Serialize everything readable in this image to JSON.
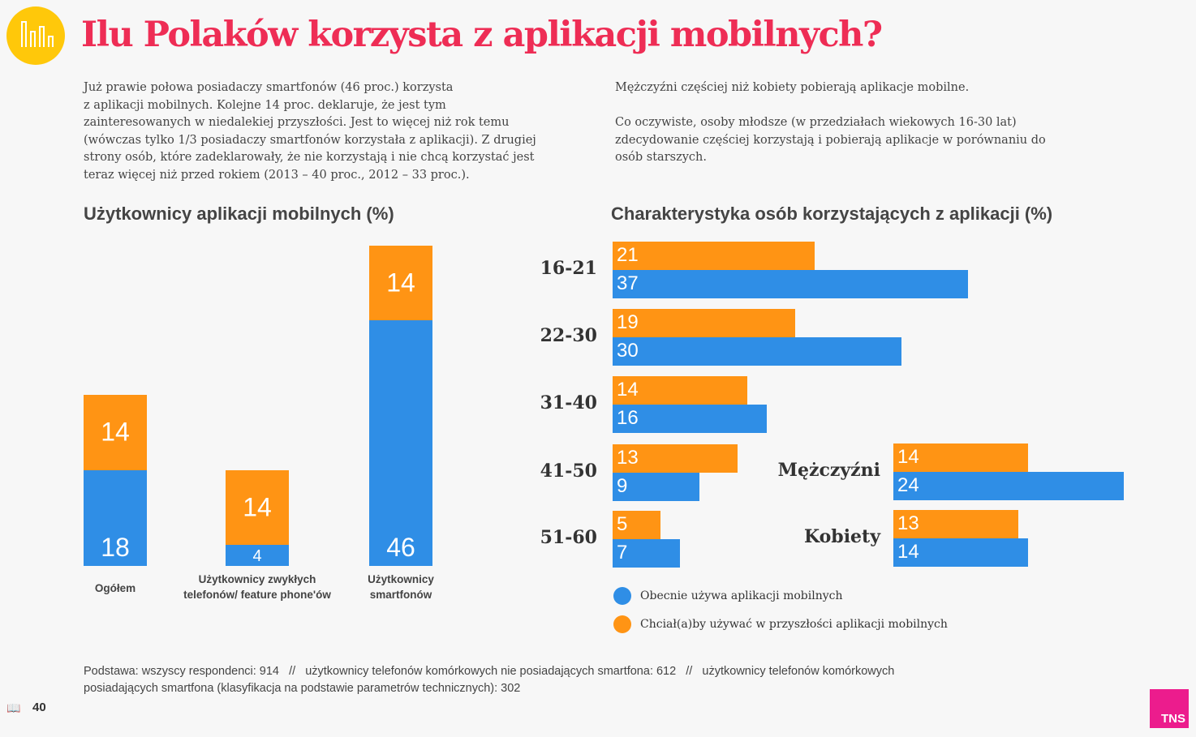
{
  "header": {
    "title": "Ilu Polaków korzysta z aplikacji mobilnych?"
  },
  "intro": {
    "left": [
      "Już prawie połowa posiadaczy smartfonów (46 proc.) korzysta",
      "z aplikacji mobilnych. Kolejne 14 proc. deklaruje, że jest tym",
      "zainteresowanych w niedalekiej przyszłości. Jest to więcej niż rok temu",
      "(wówczas tylko 1/3 posiadaczy smartfonów korzystała z aplikacji). Z drugiej",
      "strony osób, które zadeklarowały, że nie korzystają i nie chcą korzystać jest",
      "teraz więcej niż przed rokiem (2013 – 40 proc., 2012 – 33 proc.)."
    ],
    "right": [
      "Mężczyźni częściej niż kobiety pobierają aplikacje mobilne.",
      "",
      "Co oczywiste, osoby młodsze (w przedziałach wiekowych 16-30 lat)",
      "zdecydowanie częściej korzystają i pobierają aplikacje w porównaniu do",
      "osób starszych."
    ]
  },
  "colors": {
    "current": "#2f8ee6",
    "future": "#ff9414",
    "title": "#ee2d55",
    "logo": "#ffc80a",
    "tns": "#ec1c8d"
  },
  "chart_data": [
    {
      "type": "bar",
      "stacked": true,
      "title": "Użytkownicy aplikacji mobilnych (%)",
      "categories": [
        "Ogółem",
        "Użytkownicy zwykłych telefonów/ feature phone'ów",
        "Użytkownicy smartfonów"
      ],
      "category_lines": [
        [
          "Ogółem"
        ],
        [
          "Użytkownicy zwykłych",
          "telefonów/ feature phone'ów"
        ],
        [
          "Użytkownicy",
          "smartfonów"
        ]
      ],
      "series": [
        {
          "name": "Obecnie używa aplikacji mobilnych",
          "values": [
            18,
            4,
            46
          ]
        },
        {
          "name": "Chciał(a)by używać w przyszłości aplikacji mobilnych",
          "values": [
            14,
            14,
            14
          ]
        }
      ],
      "ylim": [
        0,
        60
      ]
    },
    {
      "type": "bar",
      "orientation": "horizontal",
      "title": "Charakterystyka osób korzystających z aplikacji (%)",
      "groups": [
        {
          "label": "16-21",
          "future": 21,
          "current": 37
        },
        {
          "label": "22-30",
          "future": 19,
          "current": 30
        },
        {
          "label": "31-40",
          "future": 14,
          "current": 16
        },
        {
          "label": "41-50",
          "future": 13,
          "current": 9
        },
        {
          "label": "51-60",
          "future": 5,
          "current": 7
        }
      ],
      "gender": [
        {
          "label": "Mężczyźni",
          "future": 14,
          "current": 24
        },
        {
          "label": "Kobiety",
          "future": 13,
          "current": 14
        }
      ],
      "xlim": [
        0,
        40
      ]
    }
  ],
  "legend": [
    {
      "label": "Obecnie używa aplikacji mobilnych",
      "color": "#2f8ee6"
    },
    {
      "label": "Chciał(a)by używać w przyszłości aplikacji mobilnych",
      "color": "#ff9414"
    }
  ],
  "footer": {
    "base_lines": [
      "Podstawa: wszyscy respondenci: 914   //   użytkownicy telefonów komórkowych nie posiadających smartfona: 612   //   użytkownicy telefonów komórkowych",
      "posiadających smartfona (klasyfikacja na podstawie parametrów technicznych): 302"
    ],
    "page_number": "40",
    "brand": "TNS"
  }
}
